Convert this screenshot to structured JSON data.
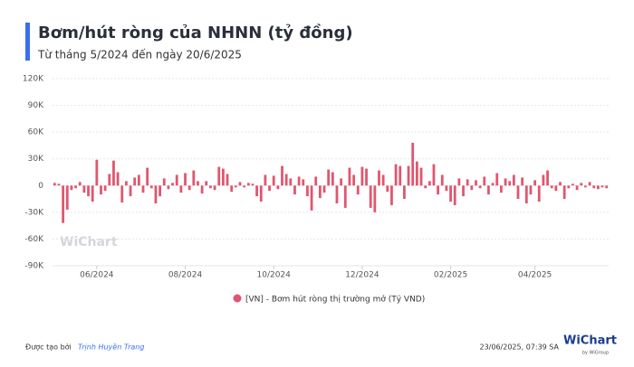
{
  "chart_data": {
    "type": "bar",
    "title": "Bơm/hút ròng của NHNN (tỷ đồng)",
    "subtitle": "Từ tháng 5/2024 đến ngày 20/6/2025",
    "categories": [
      null,
      null,
      null,
      null,
      null,
      null,
      null,
      null,
      null,
      null,
      "06/2024",
      null,
      null,
      null,
      null,
      null,
      null,
      null,
      null,
      null,
      null,
      null,
      null,
      null,
      null,
      null,
      null,
      null,
      null,
      null,
      null,
      "08/2024",
      null,
      null,
      null,
      null,
      null,
      null,
      null,
      null,
      null,
      null,
      null,
      null,
      null,
      null,
      null,
      null,
      null,
      null,
      null,
      null,
      "10/2024",
      null,
      null,
      null,
      null,
      null,
      null,
      null,
      null,
      null,
      null,
      null,
      null,
      null,
      null,
      null,
      null,
      null,
      null,
      null,
      null,
      "12/2024",
      null,
      null,
      null,
      null,
      null,
      null,
      null,
      null,
      null,
      null,
      null,
      null,
      null,
      null,
      null,
      null,
      null,
      null,
      null,
      null,
      "02/2025",
      null,
      null,
      null,
      null,
      null,
      null,
      null,
      null,
      null,
      null,
      null,
      null,
      null,
      null,
      null,
      null,
      null,
      null,
      null,
      "04/2025",
      null,
      null,
      null,
      null,
      null,
      null,
      null,
      null,
      null,
      null,
      null,
      null,
      null,
      null,
      null,
      null,
      null
    ],
    "series": [
      {
        "name": "[VN] - Bơm hút ròng thị trường mở (Tỷ VND)",
        "color": "#e0566e",
        "values": [
          3000,
          2000,
          -42000,
          -27000,
          -5000,
          -3000,
          4000,
          -8000,
          -12000,
          -18000,
          29000,
          -10000,
          -6000,
          13000,
          28000,
          15000,
          -19000,
          5000,
          -12000,
          9000,
          12000,
          -8000,
          20000,
          -3000,
          -20000,
          -12000,
          8000,
          -4000,
          3000,
          12000,
          -8000,
          14000,
          -5000,
          17000,
          5000,
          -9000,
          5000,
          -3000,
          -5000,
          21000,
          19000,
          13000,
          -7000,
          -2000,
          4000,
          -2000,
          3000,
          2000,
          -12000,
          -18000,
          12000,
          -6000,
          11000,
          -4000,
          22000,
          13000,
          8000,
          -10000,
          10000,
          7000,
          -12000,
          -28000,
          10000,
          -14000,
          -8000,
          18000,
          15000,
          -20000,
          8000,
          -25000,
          20000,
          12000,
          -10000,
          21000,
          19000,
          -25000,
          -30000,
          17000,
          12000,
          -7000,
          -22000,
          24000,
          22000,
          -15000,
          22000,
          48000,
          27000,
          20000,
          -3000,
          5000,
          24000,
          -10000,
          12000,
          -6000,
          -18000,
          -22000,
          8000,
          -12000,
          7000,
          -5000,
          6000,
          -3000,
          10000,
          -10000,
          3000,
          14000,
          -8000,
          8000,
          5000,
          12000,
          -15000,
          9000,
          -20000,
          -10000,
          6000,
          -18000,
          12000,
          17000,
          -3000,
          -6000,
          4000,
          -15000,
          -3000,
          2000,
          -5000,
          3000,
          -2000,
          4000,
          -3000,
          -4000,
          -2000,
          -3000
        ]
      }
    ],
    "ylim": [
      -90000,
      120000
    ],
    "yticks": [
      {
        "value": -90000,
        "label": "-90K"
      },
      {
        "value": -60000,
        "label": "-60K"
      },
      {
        "value": -30000,
        "label": "-30K"
      },
      0,
      {
        "value": 30000,
        "label": "30K"
      },
      {
        "value": 60000,
        "label": "60K"
      },
      {
        "value": 90000,
        "label": "90K"
      },
      {
        "value": 120000,
        "label": "120K"
      }
    ],
    "grid": true
  },
  "footer": {
    "created_by": "Được tạo bởi",
    "author": "Trịnh Huyền Trang",
    "timestamp": "23/06/2025, 07:39 SA"
  },
  "watermark": {
    "brand": "WiChart",
    "by": "by WiGroup"
  }
}
